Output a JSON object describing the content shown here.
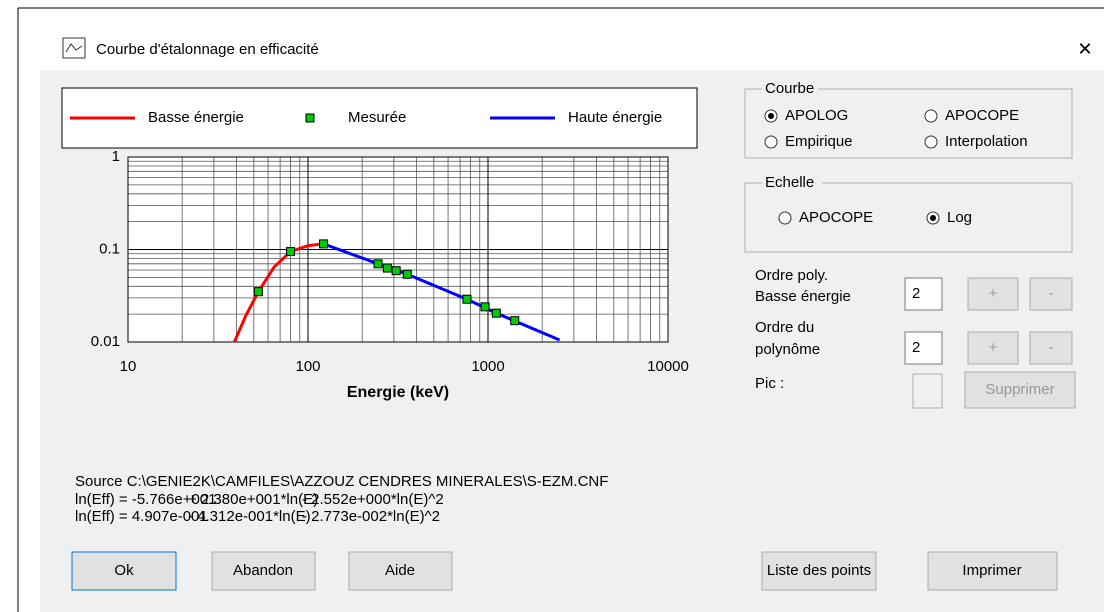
{
  "window": {
    "title": "Courbe d'étalonnage en efficacité",
    "close": "×"
  },
  "chart_data": {
    "type": "line",
    "xlabel": "Energie (keV)",
    "xscale": "log",
    "yscale": "log",
    "grid": true,
    "minor_grid": true,
    "xlim": [
      10,
      10000
    ],
    "xticks": [
      10,
      100,
      1000,
      10000
    ],
    "ylim": [
      0.01,
      1
    ],
    "yticks": [
      1,
      0.1,
      0.01
    ],
    "series": [
      {
        "name": "Basse énergie",
        "style": "line",
        "color": "#ff0000",
        "x": [
          39,
          45,
          53,
          65,
          80,
          100,
          122
        ],
        "values": [
          0.01,
          0.019,
          0.035,
          0.065,
          0.095,
          0.11,
          0.115
        ]
      },
      {
        "name": "Mesurée",
        "style": "markers",
        "color": "#00cc00",
        "x": [
          53,
          80,
          122,
          245,
          276,
          309,
          356,
          764,
          963,
          1112,
          1408
        ],
        "values": [
          0.035,
          0.095,
          0.115,
          0.07,
          0.063,
          0.059,
          0.054,
          0.029,
          0.024,
          0.0205,
          0.017
        ]
      },
      {
        "name": "Haute énergie",
        "style": "line",
        "color": "#0000ff",
        "x": [
          122,
          245,
          356,
          764,
          1112,
          2500
        ],
        "values": [
          0.115,
          0.07,
          0.054,
          0.029,
          0.0205,
          0.0105
        ]
      }
    ]
  },
  "courbe": {
    "title": "Courbe",
    "options": [
      {
        "label": "APOLOG",
        "selected": true
      },
      {
        "label": "APOCOPE",
        "selected": false
      },
      {
        "label": "Empirique",
        "selected": false
      },
      {
        "label": "Interpolation",
        "selected": false
      }
    ]
  },
  "echelle": {
    "title": "Echelle",
    "options": [
      {
        "label": "APOCOPE",
        "selected": false
      },
      {
        "label": "Log",
        "selected": true
      }
    ]
  },
  "ordre_basse": {
    "label": [
      "Ordre poly.",
      "Basse énergie"
    ],
    "value": "2",
    "plus": "+",
    "minus": "-"
  },
  "ordre_poly": {
    "label": [
      "Ordre du",
      "polynôme"
    ],
    "value": "2",
    "plus": "+",
    "minus": "-"
  },
  "pic": {
    "label": "Pic :",
    "button": "Supprimer"
  },
  "source": "Source  C:\\GENIE2K\\CAMFILES\\AZZOUZ CENDRES MINERALES\\S-EZM.CNF",
  "equations": [
    [
      "ln(Eff) = -5.766e+001",
      "+ 2.380e+001*ln(E)",
      "- 2.552e+000*ln(E)^2"
    ],
    [
      "ln(Eff) = 4.907e-001",
      "- 4.312e-001*ln(E)",
      "- 2.773e-002*ln(E)^2"
    ]
  ],
  "buttons": {
    "ok": "Ok",
    "abandon": "Abandon",
    "aide": "Aide",
    "liste": "Liste des points",
    "imprimer": "Imprimer"
  }
}
